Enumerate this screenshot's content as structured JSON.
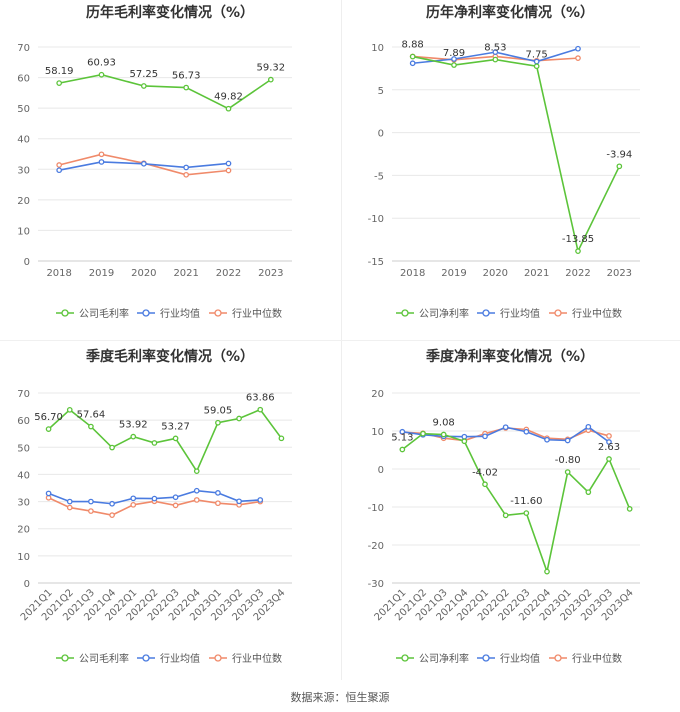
{
  "source": "数据来源：恒生聚源",
  "legend_labels": {
    "company_gross": "公司毛利率",
    "company_net": "公司净利率",
    "industry_avg": "行业均值",
    "industry_median": "行业中位数"
  },
  "colors": {
    "company": "#5cc43a",
    "avg": "#4a7be0",
    "median": "#f08a6a"
  },
  "chart_data": [
    {
      "type": "line",
      "title": "历年毛利率变化情况（%）",
      "categories": [
        "2018",
        "2019",
        "2020",
        "2021",
        "2022",
        "2023"
      ],
      "ylim": [
        0,
        70
      ],
      "yticks": [
        0,
        10,
        20,
        30,
        40,
        50,
        60,
        70
      ],
      "series": [
        {
          "name": "公司毛利率",
          "values": [
            58.19,
            60.93,
            57.25,
            56.73,
            49.82,
            59.32
          ]
        },
        {
          "name": "行业均值",
          "values": [
            29.7,
            32.4,
            31.8,
            30.6,
            31.9,
            null
          ]
        },
        {
          "name": "行业中位数",
          "values": [
            31.4,
            34.9,
            32.0,
            28.2,
            29.6,
            null
          ]
        }
      ],
      "data_labels": [
        "58.19",
        "60.93",
        "57.25",
        "56.73",
        "49.82",
        "59.32"
      ]
    },
    {
      "type": "line",
      "title": "历年净利率变化情况（%）",
      "categories": [
        "2018",
        "2019",
        "2020",
        "2021",
        "2022",
        "2023"
      ],
      "ylim": [
        -15,
        10
      ],
      "yticks": [
        -15,
        -10,
        -5,
        0,
        5,
        10
      ],
      "series": [
        {
          "name": "公司净利率",
          "values": [
            8.88,
            7.89,
            8.53,
            7.75,
            -13.85,
            -3.94
          ]
        },
        {
          "name": "行业均值",
          "values": [
            8.1,
            8.6,
            9.4,
            8.3,
            9.8,
            null
          ]
        },
        {
          "name": "行业中位数",
          "values": [
            8.9,
            8.5,
            8.9,
            8.4,
            8.7,
            null
          ]
        }
      ],
      "data_labels": [
        "8.88",
        "7.89",
        "8.53",
        "7.75",
        "-13.85",
        "-3.94"
      ]
    },
    {
      "type": "line",
      "title": "季度毛利率变化情况（%）",
      "categories": [
        "2021Q1",
        "2021Q2",
        "2021Q3",
        "2021Q4",
        "2022Q1",
        "2022Q2",
        "2022Q3",
        "2022Q4",
        "2023Q1",
        "2023Q2",
        "2023Q3",
        "2023Q4"
      ],
      "ylim": [
        0,
        70
      ],
      "yticks": [
        0,
        10,
        20,
        30,
        40,
        50,
        60,
        70
      ],
      "series": [
        {
          "name": "公司毛利率",
          "values": [
            56.7,
            63.8,
            57.64,
            49.9,
            53.92,
            51.6,
            53.27,
            41.2,
            59.05,
            60.6,
            63.86,
            53.3
          ]
        },
        {
          "name": "行业均值",
          "values": [
            33.0,
            30.0,
            30.0,
            29.2,
            31.2,
            31.1,
            31.6,
            34.0,
            33.2,
            30.1,
            30.6,
            null
          ]
        },
        {
          "name": "行业中位数",
          "values": [
            31.4,
            27.8,
            26.5,
            25.0,
            28.8,
            30.1,
            28.6,
            30.6,
            29.4,
            28.8,
            30.0,
            null
          ]
        }
      ],
      "data_labels": [
        {
          "index": 0,
          "text": "56.70"
        },
        {
          "index": 2,
          "text": "57.64"
        },
        {
          "index": 4,
          "text": "53.92"
        },
        {
          "index": 6,
          "text": "53.27"
        },
        {
          "index": 8,
          "text": "59.05"
        },
        {
          "index": 10,
          "text": "63.86"
        }
      ]
    },
    {
      "type": "line",
      "title": "季度净利率变化情况（%）",
      "categories": [
        "2021Q1",
        "2021Q2",
        "2021Q3",
        "2021Q4",
        "2022Q1",
        "2022Q2",
        "2022Q3",
        "2022Q4",
        "2023Q1",
        "2023Q2",
        "2023Q3",
        "2023Q4"
      ],
      "ylim": [
        -30,
        20
      ],
      "yticks": [
        -30,
        -20,
        -10,
        0,
        10,
        20
      ],
      "series": [
        {
          "name": "公司净利率",
          "values": [
            5.13,
            9.3,
            9.08,
            7.3,
            -4.02,
            -12.2,
            -11.6,
            -27.0,
            -0.8,
            -6.1,
            2.63,
            -10.5
          ]
        },
        {
          "name": "行业均值",
          "values": [
            9.8,
            9.0,
            8.6,
            8.5,
            8.6,
            11.0,
            9.8,
            7.7,
            7.5,
            11.1,
            7.1,
            null
          ]
        },
        {
          "name": "行业中位数",
          "values": [
            9.7,
            9.4,
            8.1,
            7.5,
            9.3,
            10.8,
            10.4,
            8.1,
            7.8,
            10.2,
            8.7,
            null
          ]
        }
      ],
      "data_labels": [
        {
          "index": 0,
          "text": "5.13"
        },
        {
          "index": 2,
          "text": "9.08"
        },
        {
          "index": 4,
          "text": "-4.02"
        },
        {
          "index": 6,
          "text": "-11.60"
        },
        {
          "index": 8,
          "text": "-0.80"
        },
        {
          "index": 10,
          "text": "2.63"
        }
      ]
    }
  ]
}
